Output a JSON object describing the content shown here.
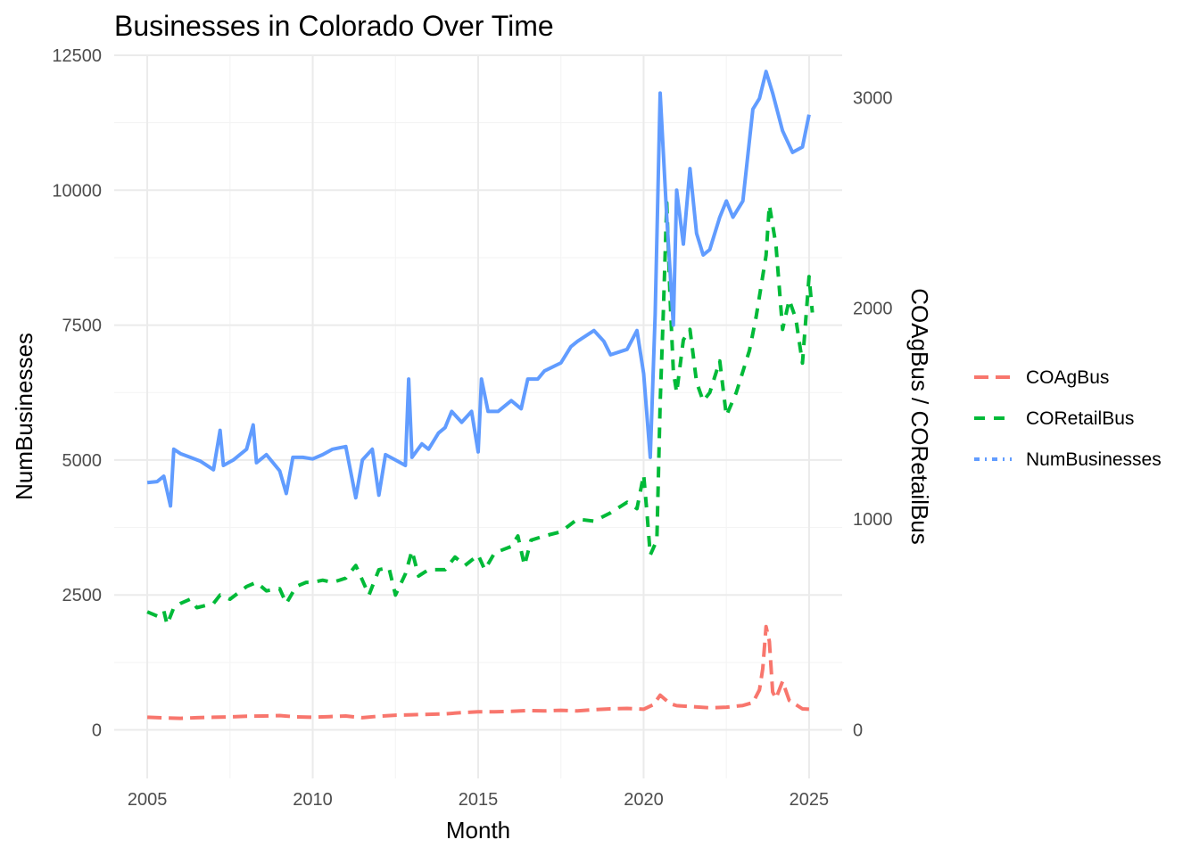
{
  "chart_data": {
    "type": "line",
    "title": "Businesses in Colorado Over Time",
    "xlabel": "Month",
    "ylabel": "NumBusinesses",
    "y2label": "COAgBus / CORetailBus",
    "xlim": [
      2004.0,
      2026.0
    ],
    "ylim": [
      -900,
      12500
    ],
    "y2lim": [
      -230,
      3200
    ],
    "x_ticks": [
      2005,
      2010,
      2015,
      2020,
      2025
    ],
    "y_ticks": [
      0,
      2500,
      5000,
      7500,
      10000,
      12500
    ],
    "y2_ticks": [
      0,
      1000,
      2000,
      3000
    ],
    "grid": true,
    "legend_position": "right",
    "series": [
      {
        "name": "COAgBus",
        "axis": "right",
        "color": "#F8766D",
        "dash": "long",
        "points": [
          [
            2005.0,
            60
          ],
          [
            2005.5,
            57
          ],
          [
            2006.0,
            55
          ],
          [
            2006.5,
            58
          ],
          [
            2007.0,
            60
          ],
          [
            2007.5,
            62
          ],
          [
            2008.0,
            65
          ],
          [
            2008.5,
            66
          ],
          [
            2009.0,
            68
          ],
          [
            2009.5,
            62
          ],
          [
            2010.0,
            60
          ],
          [
            2010.5,
            63
          ],
          [
            2011.0,
            66
          ],
          [
            2011.5,
            58
          ],
          [
            2012.0,
            65
          ],
          [
            2012.5,
            70
          ],
          [
            2013.0,
            72
          ],
          [
            2013.5,
            74
          ],
          [
            2014.0,
            76
          ],
          [
            2014.5,
            82
          ],
          [
            2015.0,
            86
          ],
          [
            2015.5,
            86
          ],
          [
            2016.0,
            88
          ],
          [
            2016.5,
            92
          ],
          [
            2017.0,
            90
          ],
          [
            2017.5,
            93
          ],
          [
            2018.0,
            90
          ],
          [
            2018.5,
            96
          ],
          [
            2019.0,
            100
          ],
          [
            2019.5,
            102
          ],
          [
            2020.0,
            98
          ],
          [
            2020.3,
            120
          ],
          [
            2020.5,
            165
          ],
          [
            2020.8,
            125
          ],
          [
            2021.0,
            115
          ],
          [
            2021.5,
            110
          ],
          [
            2022.0,
            105
          ],
          [
            2022.5,
            108
          ],
          [
            2023.0,
            116
          ],
          [
            2023.3,
            130
          ],
          [
            2023.5,
            190
          ],
          [
            2023.6,
            290
          ],
          [
            2023.7,
            490
          ],
          [
            2023.8,
            420
          ],
          [
            2023.9,
            180
          ],
          [
            2024.0,
            150
          ],
          [
            2024.2,
            230
          ],
          [
            2024.4,
            140
          ],
          [
            2024.6,
            120
          ],
          [
            2024.8,
            100
          ],
          [
            2025.0,
            98
          ]
        ]
      },
      {
        "name": "CORetailBus",
        "axis": "right",
        "color": "#00BA38",
        "dash": "medium",
        "points": [
          [
            2005.0,
            560
          ],
          [
            2005.3,
            540
          ],
          [
            2005.5,
            565
          ],
          [
            2005.6,
            500
          ],
          [
            2005.8,
            580
          ],
          [
            2006.0,
            600
          ],
          [
            2006.3,
            620
          ],
          [
            2006.5,
            580
          ],
          [
            2007.0,
            600
          ],
          [
            2007.2,
            640
          ],
          [
            2007.5,
            620
          ],
          [
            2008.0,
            680
          ],
          [
            2008.3,
            700
          ],
          [
            2008.6,
            660
          ],
          [
            2009.0,
            670
          ],
          [
            2009.2,
            600
          ],
          [
            2009.5,
            680
          ],
          [
            2009.8,
            700
          ],
          [
            2010.0,
            700
          ],
          [
            2010.3,
            710
          ],
          [
            2010.6,
            700
          ],
          [
            2011.0,
            720
          ],
          [
            2011.3,
            780
          ],
          [
            2011.5,
            710
          ],
          [
            2011.7,
            640
          ],
          [
            2012.0,
            760
          ],
          [
            2012.3,
            770
          ],
          [
            2012.5,
            640
          ],
          [
            2012.8,
            740
          ],
          [
            2013.0,
            850
          ],
          [
            2013.2,
            730
          ],
          [
            2013.5,
            760
          ],
          [
            2014.0,
            760
          ],
          [
            2014.3,
            820
          ],
          [
            2014.6,
            780
          ],
          [
            2015.0,
            830
          ],
          [
            2015.2,
            760
          ],
          [
            2015.5,
            840
          ],
          [
            2016.0,
            870
          ],
          [
            2016.2,
            920
          ],
          [
            2016.4,
            780
          ],
          [
            2016.6,
            900
          ],
          [
            2017.0,
            920
          ],
          [
            2017.5,
            940
          ],
          [
            2018.0,
            1000
          ],
          [
            2018.5,
            990
          ],
          [
            2019.0,
            1030
          ],
          [
            2019.5,
            1080
          ],
          [
            2019.8,
            1050
          ],
          [
            2020.0,
            1210
          ],
          [
            2020.1,
            1030
          ],
          [
            2020.2,
            830
          ],
          [
            2020.4,
            900
          ],
          [
            2020.5,
            1550
          ],
          [
            2020.6,
            2000
          ],
          [
            2020.7,
            2500
          ],
          [
            2020.8,
            2050
          ],
          [
            2020.9,
            1700
          ],
          [
            2021.0,
            1600
          ],
          [
            2021.2,
            1850
          ],
          [
            2021.4,
            1900
          ],
          [
            2021.6,
            1650
          ],
          [
            2021.8,
            1560
          ],
          [
            2022.0,
            1600
          ],
          [
            2022.3,
            1750
          ],
          [
            2022.5,
            1490
          ],
          [
            2022.8,
            1600
          ],
          [
            2023.0,
            1700
          ],
          [
            2023.2,
            1800
          ],
          [
            2023.4,
            1960
          ],
          [
            2023.7,
            2250
          ],
          [
            2023.8,
            2490
          ],
          [
            2024.0,
            2300
          ],
          [
            2024.2,
            1900
          ],
          [
            2024.4,
            2040
          ],
          [
            2024.6,
            1950
          ],
          [
            2024.8,
            1740
          ],
          [
            2025.0,
            2150
          ],
          [
            2025.1,
            1980
          ]
        ]
      },
      {
        "name": "NumBusinesses",
        "axis": "left",
        "color": "#619CFF",
        "dash": "solid",
        "points": [
          [
            2005.0,
            4580
          ],
          [
            2005.3,
            4600
          ],
          [
            2005.5,
            4700
          ],
          [
            2005.7,
            4150
          ],
          [
            2005.8,
            5200
          ],
          [
            2006.0,
            5120
          ],
          [
            2006.3,
            5050
          ],
          [
            2006.6,
            4980
          ],
          [
            2007.0,
            4820
          ],
          [
            2007.2,
            5550
          ],
          [
            2007.3,
            4900
          ],
          [
            2007.6,
            5000
          ],
          [
            2008.0,
            5200
          ],
          [
            2008.2,
            5650
          ],
          [
            2008.3,
            4950
          ],
          [
            2008.6,
            5100
          ],
          [
            2009.0,
            4800
          ],
          [
            2009.2,
            4380
          ],
          [
            2009.4,
            5050
          ],
          [
            2009.7,
            5050
          ],
          [
            2010.0,
            5020
          ],
          [
            2010.3,
            5100
          ],
          [
            2010.6,
            5200
          ],
          [
            2011.0,
            5250
          ],
          [
            2011.3,
            4300
          ],
          [
            2011.5,
            5000
          ],
          [
            2011.8,
            5200
          ],
          [
            2012.0,
            4350
          ],
          [
            2012.2,
            5100
          ],
          [
            2012.5,
            5000
          ],
          [
            2012.8,
            4900
          ],
          [
            2012.9,
            6500
          ],
          [
            2013.0,
            5050
          ],
          [
            2013.3,
            5300
          ],
          [
            2013.5,
            5200
          ],
          [
            2013.8,
            5500
          ],
          [
            2014.0,
            5600
          ],
          [
            2014.2,
            5900
          ],
          [
            2014.5,
            5700
          ],
          [
            2014.8,
            5900
          ],
          [
            2015.0,
            5150
          ],
          [
            2015.1,
            6500
          ],
          [
            2015.3,
            5900
          ],
          [
            2015.6,
            5900
          ],
          [
            2016.0,
            6100
          ],
          [
            2016.3,
            5950
          ],
          [
            2016.5,
            6500
          ],
          [
            2016.8,
            6500
          ],
          [
            2017.0,
            6650
          ],
          [
            2017.5,
            6800
          ],
          [
            2017.8,
            7100
          ],
          [
            2018.0,
            7200
          ],
          [
            2018.5,
            7400
          ],
          [
            2018.8,
            7200
          ],
          [
            2019.0,
            6950
          ],
          [
            2019.5,
            7050
          ],
          [
            2019.8,
            7400
          ],
          [
            2020.0,
            6600
          ],
          [
            2020.2,
            5050
          ],
          [
            2020.35,
            7700
          ],
          [
            2020.5,
            11800
          ],
          [
            2020.7,
            9500
          ],
          [
            2020.9,
            7500
          ],
          [
            2021.0,
            10000
          ],
          [
            2021.2,
            9000
          ],
          [
            2021.4,
            10400
          ],
          [
            2021.6,
            9200
          ],
          [
            2021.8,
            8800
          ],
          [
            2022.0,
            8900
          ],
          [
            2022.3,
            9500
          ],
          [
            2022.5,
            9800
          ],
          [
            2022.7,
            9500
          ],
          [
            2023.0,
            9800
          ],
          [
            2023.3,
            11500
          ],
          [
            2023.5,
            11700
          ],
          [
            2023.7,
            12200
          ],
          [
            2023.9,
            11800
          ],
          [
            2024.2,
            11100
          ],
          [
            2024.5,
            10700
          ],
          [
            2024.8,
            10800
          ],
          [
            2025.0,
            11400
          ]
        ]
      }
    ]
  }
}
